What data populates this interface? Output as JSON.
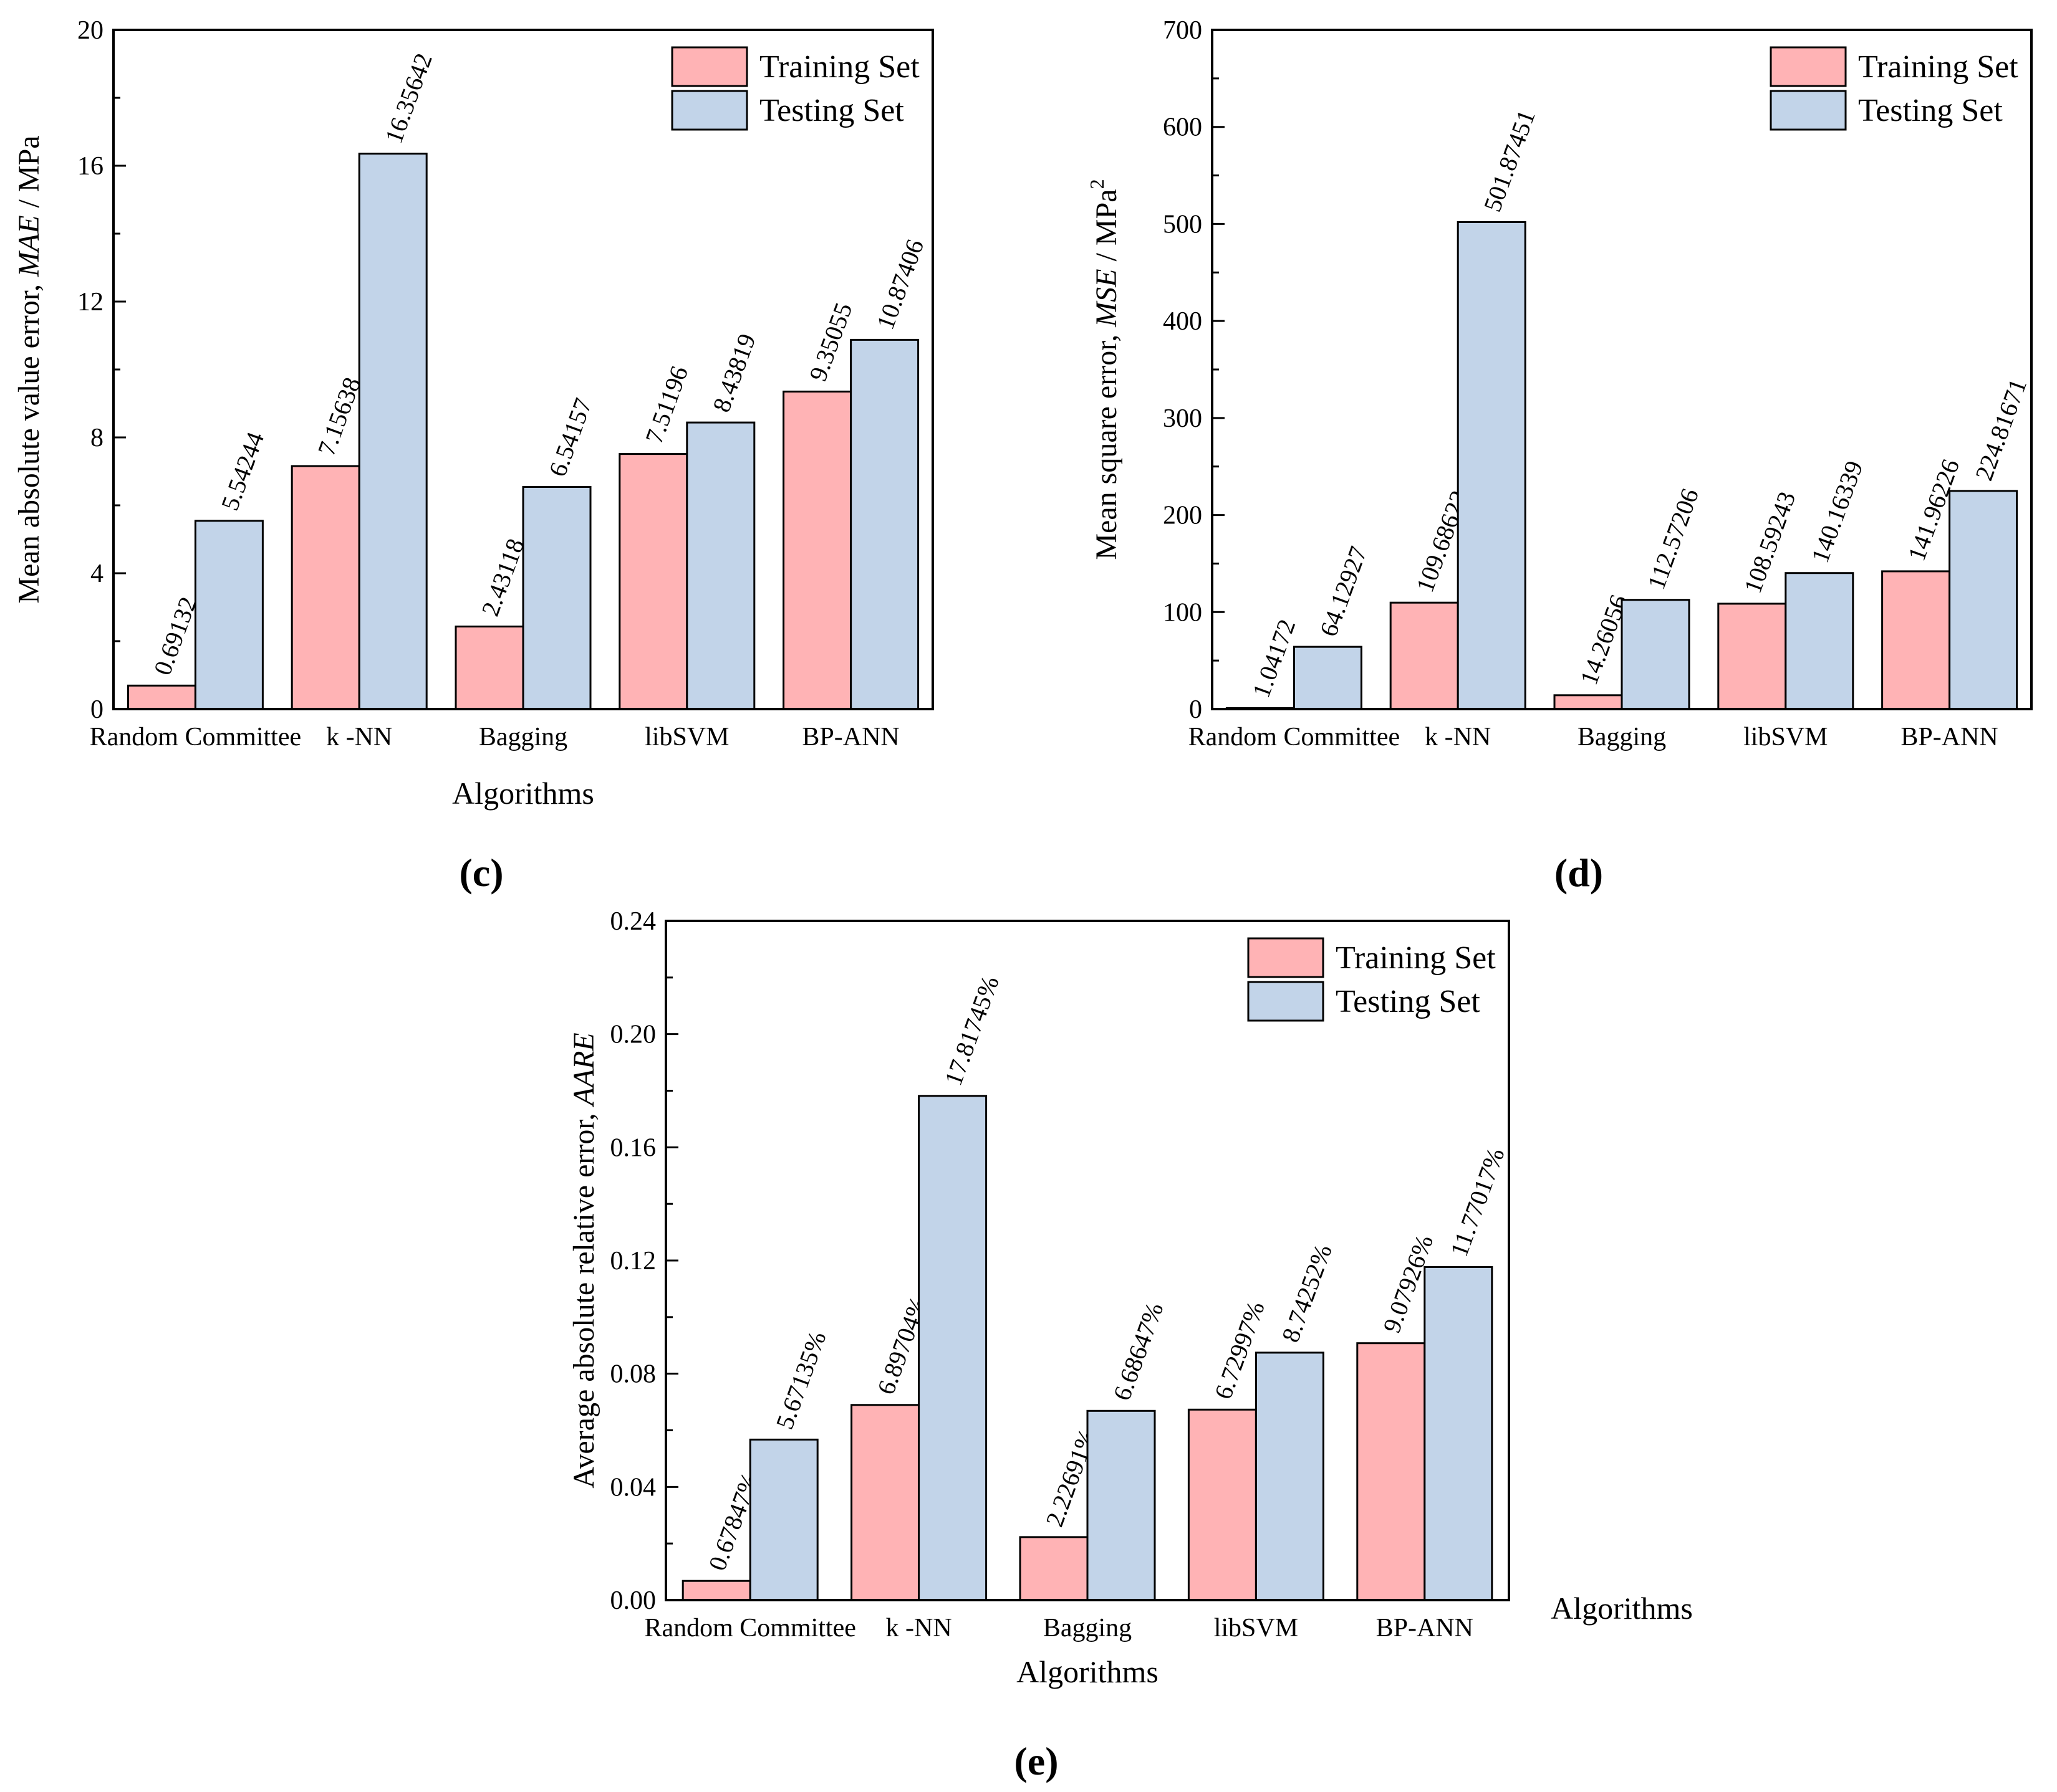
{
  "colors": {
    "training": "#FFB3B5",
    "testing": "#C2D4E9",
    "stroke": "#000000"
  },
  "chart_data": [
    {
      "id": "c",
      "type": "bar",
      "panel_label": "(c)",
      "title": "",
      "xlabel": "Algorithms",
      "ylabel": {
        "pre": "Mean absolute value error, ",
        "ital": "MAE",
        "post": " / MPa"
      },
      "ylim": [
        0,
        20
      ],
      "yticks": [
        "0",
        "4",
        "8",
        "12",
        "16",
        "20"
      ],
      "ytick_values": [
        0,
        4,
        8,
        12,
        16,
        20
      ],
      "categories": [
        "Random Committee",
        "k -NN",
        "Bagging",
        "libSVM",
        "BP-ANN"
      ],
      "legend_position": "top-right",
      "series": [
        {
          "name": "Training Set",
          "values": [
            0.69132,
            7.15638,
            2.43118,
            7.51196,
            9.35055
          ],
          "labels": [
            "0.69132",
            "7.15638",
            "2.43118",
            "7.51196",
            "9.35055"
          ]
        },
        {
          "name": "Testing Set",
          "values": [
            5.54244,
            16.35642,
            6.54157,
            8.43819,
            10.87406
          ],
          "labels": [
            "5.54244",
            "16.35642",
            "6.54157",
            "8.43819",
            "10.87406"
          ]
        }
      ]
    },
    {
      "id": "d",
      "type": "bar",
      "panel_label": "(d)",
      "title": "",
      "xlabel": "Algorithms",
      "ylabel": {
        "pre": "Mean square error, ",
        "ital": "MSE",
        "post": " / MPa",
        "sup": "2"
      },
      "ylim": [
        0,
        700
      ],
      "yticks": [
        "0",
        "100",
        "200",
        "300",
        "400",
        "500",
        "600",
        "700"
      ],
      "ytick_values": [
        0,
        100,
        200,
        300,
        400,
        500,
        600,
        700
      ],
      "categories": [
        "Random Committee",
        "k -NN",
        "Bagging",
        "libSVM",
        "BP-ANN"
      ],
      "legend_position": "top-right",
      "series": [
        {
          "name": "Training Set",
          "values": [
            1.04172,
            109.68622,
            14.26056,
            108.59243,
            141.96226
          ],
          "labels": [
            "1.04172",
            "109.68622",
            "14.26056",
            "108.59243",
            "141.96226"
          ]
        },
        {
          "name": "Testing Set",
          "values": [
            64.12927,
            501.87451,
            112.57206,
            140.16339,
            224.81671
          ],
          "labels": [
            "64.12927",
            "501.87451",
            "112.57206",
            "140.16339",
            "224.81671"
          ]
        }
      ]
    },
    {
      "id": "e",
      "type": "bar",
      "panel_label": "(e)",
      "title": "",
      "xlabel": "Algorithms",
      "ylabel": {
        "pre": "Average absolute relative error, ",
        "ital": "AARE",
        "post": ""
      },
      "ylim": [
        0,
        0.24
      ],
      "yticks": [
        "0.00",
        "0.04",
        "0.08",
        "0.12",
        "0.16",
        "0.20",
        "0.24"
      ],
      "ytick_values": [
        0,
        0.04,
        0.08,
        0.12,
        0.16,
        0.2,
        0.24
      ],
      "categories": [
        "Random Committee",
        "k -NN",
        "Bagging",
        "libSVM",
        "BP-ANN"
      ],
      "legend_position": "top-right",
      "series": [
        {
          "name": "Training Set",
          "values": [
            0.0067847,
            0.0689704,
            0.0222691,
            0.0672997,
            0.0907926
          ],
          "labels": [
            "0.67847%",
            "6.89704%",
            "2.22691%",
            "6.72997%",
            "9.07926%"
          ]
        },
        {
          "name": "Testing Set",
          "values": [
            0.0567135,
            0.1781745,
            0.0668647,
            0.0874252,
            0.1177017
          ],
          "labels": [
            "5.67135%",
            "17.81745%",
            "6.68647%",
            "8.74252%",
            "11.77017%"
          ]
        }
      ]
    }
  ]
}
